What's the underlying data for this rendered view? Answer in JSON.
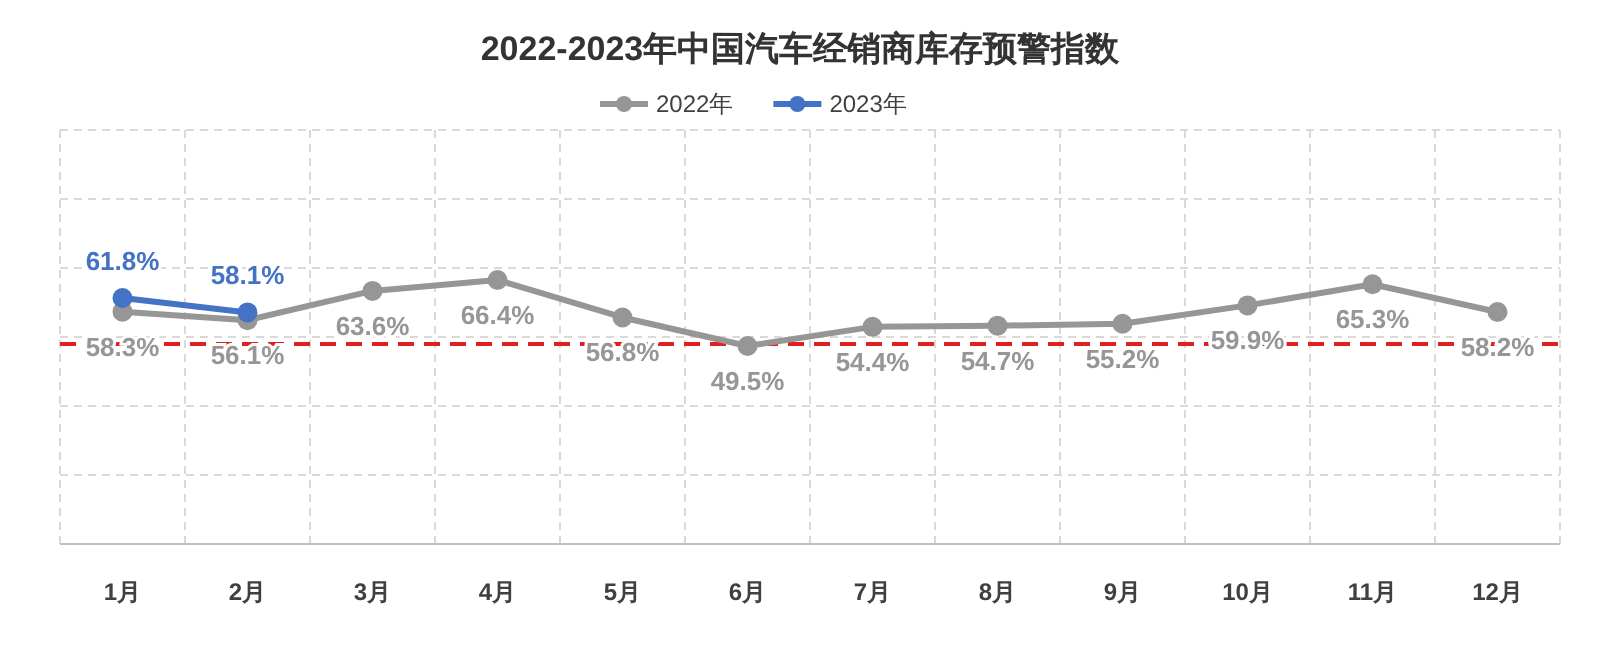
{
  "chart_data": {
    "type": "line",
    "title": "2022-2023年中国汽车经销商库存预警指数",
    "categories": [
      "1月",
      "2月",
      "3月",
      "4月",
      "5月",
      "6月",
      "7月",
      "8月",
      "9月",
      "10月",
      "11月",
      "12月"
    ],
    "series": [
      {
        "name": "2022年",
        "color": "#969696",
        "values": [
          58.3,
          56.1,
          63.6,
          66.4,
          56.8,
          49.5,
          54.4,
          54.7,
          55.2,
          59.9,
          65.3,
          58.2
        ],
        "value_labels": [
          "58.3%",
          "56.1%",
          "63.6%",
          "66.4%",
          "56.8%",
          "49.5%",
          "54.4%",
          "54.7%",
          "55.2%",
          "59.9%",
          "65.3%",
          "58.2%"
        ]
      },
      {
        "name": "2023年",
        "color": "#4472c4",
        "values": [
          61.8,
          58.1,
          null,
          null,
          null,
          null,
          null,
          null,
          null,
          null,
          null,
          null
        ],
        "value_labels": [
          "61.8%",
          "58.1%",
          null,
          null,
          null,
          null,
          null,
          null,
          null,
          null,
          null,
          null
        ]
      }
    ],
    "tick_labels": "x",
    "ref_lines": [
      {
        "axis": "y",
        "value": 50,
        "color": "#e02020",
        "line_style": "dashed"
      }
    ],
    "grid": true,
    "legend": "top",
    "marker": "circle",
    "line_style": "solid"
  }
}
